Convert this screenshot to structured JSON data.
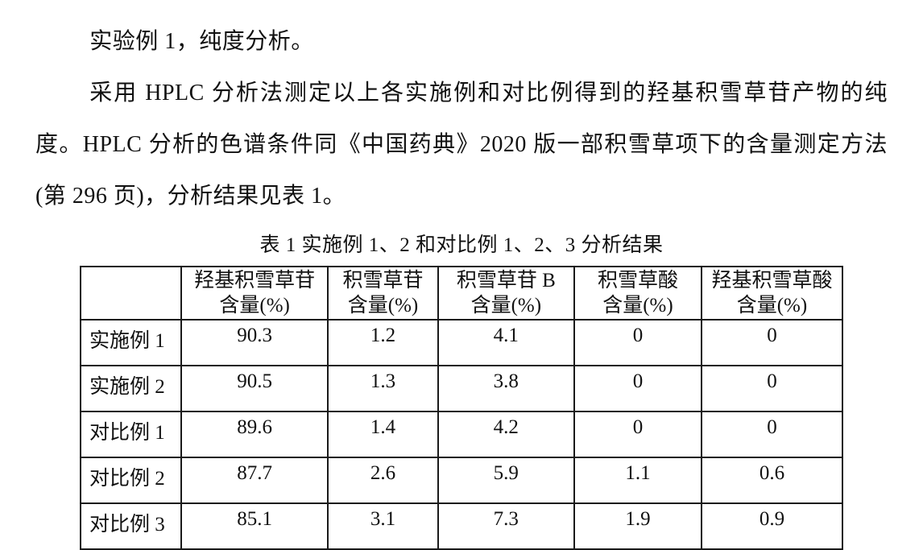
{
  "document": {
    "paragraphs": {
      "experiment_title": "实验例 1，纯度分析。",
      "method_description": "采用 HPLC 分析法测定以上各实施例和对比例得到的羟基积雪草苷产物的纯度。HPLC 分析的色谱条件同《中国药典》2020 版一部积雪草项下的含量测定方法(第 296 页)，分析结果见表 1。"
    },
    "table": {
      "caption": "表 1 实施例 1、2 和对比例 1、2、3 分析结果",
      "headers": [
        "",
        "羟基积雪草苷\n含量(%)",
        "积雪草苷\n含量(%)",
        "积雪草苷 B\n含量(%)",
        "积雪草酸\n含量(%)",
        "羟基积雪草酸\n含量(%)"
      ],
      "rows": [
        {
          "label": "实施例 1",
          "values": [
            "90.3",
            "1.2",
            "4.1",
            "0",
            "0"
          ]
        },
        {
          "label": "实施例 2",
          "values": [
            "90.5",
            "1.3",
            "3.8",
            "0",
            "0"
          ]
        },
        {
          "label": "对比例 1",
          "values": [
            "89.6",
            "1.4",
            "4.2",
            "0",
            "0"
          ]
        },
        {
          "label": "对比例 2",
          "values": [
            "87.7",
            "2.6",
            "5.9",
            "1.1",
            "0.6"
          ]
        },
        {
          "label": "对比例 3",
          "values": [
            "85.1",
            "3.1",
            "7.3",
            "1.9",
            "0.9"
          ]
        }
      ]
    },
    "colors": {
      "background": "#ffffff",
      "text": "#111111",
      "table_border": "#1a1a1a"
    }
  }
}
